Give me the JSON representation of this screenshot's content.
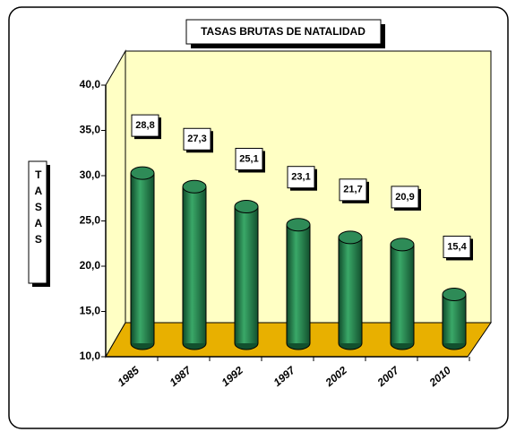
{
  "chart_data": {
    "type": "bar3d",
    "title": "TASAS BRUTAS DE NATALIDAD",
    "y_label": "TASAS",
    "categories": [
      "1985",
      "1987",
      "1992",
      "1997",
      "2002",
      "2007",
      "2010"
    ],
    "values": [
      28.8,
      27.3,
      25.1,
      23.1,
      21.7,
      20.9,
      15.4
    ],
    "value_labels": [
      "28,8",
      "27,3",
      "25,1",
      "23,1",
      "21,7",
      "20,9",
      "15,4"
    ],
    "color": "#2e8b57",
    "ylim": [
      10,
      40
    ],
    "yticks": [
      {
        "value": 10,
        "label": "10,0"
      },
      {
        "value": 15,
        "label": "15,0"
      },
      {
        "value": 20,
        "label": "20,0"
      },
      {
        "value": 25,
        "label": "25,0"
      },
      {
        "value": 30,
        "label": "30,0"
      },
      {
        "value": 35,
        "label": "35,0"
      },
      {
        "value": 40,
        "label": "40,0"
      }
    ]
  }
}
